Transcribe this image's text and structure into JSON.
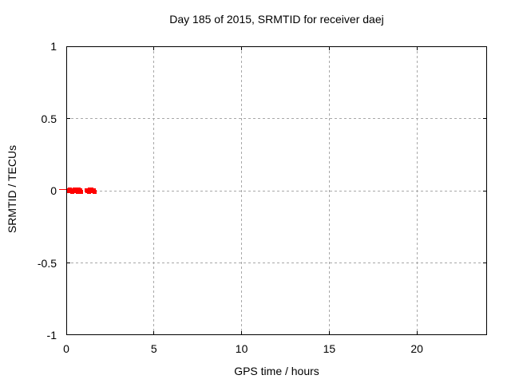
{
  "chart_data": {
    "type": "scatter",
    "title": "Day 185 of 2015, SRMTID for receiver daej",
    "xlabel": "GPS time / hours",
    "ylabel": "SRMTID / TECUs",
    "xlim": [
      0,
      24
    ],
    "ylim": [
      -1,
      1
    ],
    "xticks": {
      "values": [
        0,
        5,
        10,
        15,
        20
      ],
      "labels": [
        "0",
        "5",
        "10",
        "15",
        "20"
      ]
    },
    "yticks": {
      "values": [
        1,
        0.5,
        0,
        -0.5,
        -1
      ],
      "labels": [
        "1",
        "0.5",
        "0",
        "-0.5",
        "-1"
      ]
    },
    "grid": true,
    "grid_style": "dashed",
    "grid_color": "#a8a8a8",
    "border_color": "#000000",
    "background_color": "#ffffff",
    "legend": "none",
    "series": [
      {
        "name": "SRMTID",
        "color": "#ff0000",
        "marker": "square",
        "points": [
          [
            0.1,
            0.003
          ],
          [
            0.15,
            -0.005
          ],
          [
            0.2,
            0.007
          ],
          [
            0.25,
            -0.002
          ],
          [
            0.3,
            0.005
          ],
          [
            0.35,
            -0.007
          ],
          [
            0.4,
            0.002
          ],
          [
            0.45,
            -0.004
          ],
          [
            0.5,
            0.008
          ],
          [
            0.55,
            -0.003
          ],
          [
            0.6,
            0.004
          ],
          [
            0.65,
            -0.008
          ],
          [
            0.7,
            0.006
          ],
          [
            0.75,
            -0.002
          ],
          [
            0.8,
            0.003
          ],
          [
            0.85,
            -0.006
          ],
          [
            1.15,
            0.005
          ],
          [
            1.2,
            -0.004
          ],
          [
            1.25,
            0.002
          ],
          [
            1.3,
            -0.007
          ],
          [
            1.35,
            0.006
          ],
          [
            1.4,
            -0.003
          ],
          [
            1.45,
            0.007
          ],
          [
            1.5,
            -0.005
          ],
          [
            1.55,
            0.003
          ],
          [
            1.6,
            -0.006
          ]
        ],
        "edge_artifact": {
          "from_hours": -0.42,
          "to_hours": 0.0,
          "y_tecu": 0.011
        }
      }
    ]
  }
}
